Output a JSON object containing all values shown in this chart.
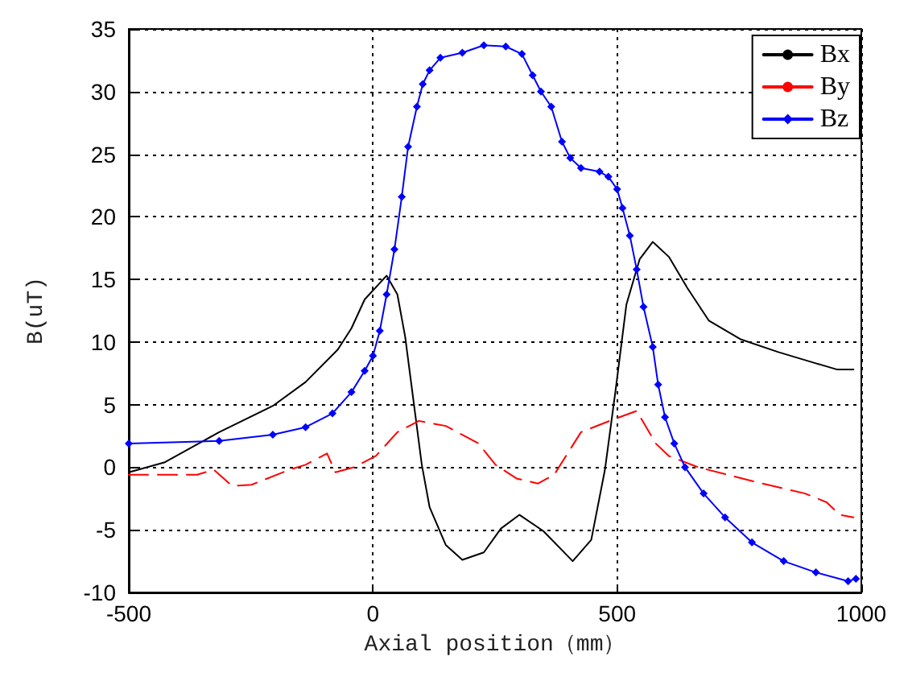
{
  "chart_data": {
    "type": "line",
    "xlabel": "Axial position（mm）",
    "ylabel": "B(uT)",
    "xlim": [
      -500,
      1000
    ],
    "xticks": [
      -500,
      0,
      500,
      1000
    ],
    "ylim": [
      -10,
      35
    ],
    "yticks": [
      -10,
      -5,
      0,
      5,
      10,
      15,
      20,
      25,
      30,
      35
    ],
    "grid": true,
    "legend": "top right",
    "series": [
      {
        "name": "Bx",
        "color": "#000000",
        "line_style": "solid",
        "marker": "none",
        "x": [
          -500,
          -426,
          -315,
          -205,
          -138,
          -72,
          -44,
          -17,
          28,
          50,
          66,
          83,
          100,
          116,
          149,
          183,
          227,
          262,
          300,
          349,
          409,
          447,
          475,
          497,
          519,
          546,
          573,
          606,
          644,
          688,
          754,
          830,
          907,
          951,
          984
        ],
        "values": [
          -0.4,
          0.4,
          2.8,
          4.9,
          6.8,
          9.4,
          11.1,
          13.4,
          15.3,
          13.8,
          10.4,
          5.3,
          0.2,
          -3.2,
          -6.2,
          -7.4,
          -6.8,
          -4.9,
          -3.8,
          -5.1,
          -7.5,
          -5.8,
          -0.2,
          6.2,
          13.0,
          16.6,
          18.0,
          16.8,
          14.3,
          11.7,
          10.2,
          9.2,
          8.3,
          7.8,
          7.8
        ]
      },
      {
        "name": "By",
        "color": "#ff0000",
        "line_style": "dashed",
        "marker": "none",
        "x": [
          -500,
          -360,
          -326,
          -288,
          -249,
          -171,
          -138,
          -94,
          -77,
          -39,
          6,
          50,
          94,
          149,
          216,
          251,
          294,
          338,
          371,
          426,
          491,
          540,
          579,
          606,
          666,
          776,
          885,
          929,
          956,
          984
        ],
        "values": [
          -0.6,
          -0.6,
          -0.2,
          -1.5,
          -1.4,
          -0.2,
          0.2,
          1.1,
          -0.4,
          0,
          0.9,
          2.8,
          3.7,
          3.3,
          1.9,
          0.2,
          -0.9,
          -1.3,
          -0.6,
          2.8,
          3.8,
          4.5,
          1.9,
          0.9,
          0,
          -1.1,
          -2.1,
          -2.8,
          -3.8,
          -4.0
        ]
      },
      {
        "name": "Bz",
        "color": "#0000ff",
        "line_style": "solid",
        "marker": "diamond",
        "x": [
          -500,
          -315,
          -205,
          -138,
          -83,
          -44,
          -17,
          0,
          14,
          28,
          44,
          59,
          72,
          90,
          102,
          116,
          138,
          183,
          227,
          272,
          305,
          327,
          344,
          365,
          387,
          404,
          426,
          464,
          482,
          500,
          511,
          526,
          540,
          554,
          573,
          584,
          598,
          617,
          639,
          677,
          721,
          776,
          841,
          907,
          973,
          989
        ],
        "values": [
          1.9,
          2.1,
          2.6,
          3.2,
          4.3,
          6.0,
          7.7,
          8.9,
          10.9,
          13.8,
          17.4,
          21.6,
          25.6,
          28.8,
          30.6,
          31.7,
          32.7,
          33.1,
          33.7,
          33.6,
          33.0,
          31.3,
          30.0,
          28.8,
          26.0,
          24.7,
          23.9,
          23.6,
          23.2,
          22.2,
          20.7,
          18.5,
          15.8,
          12.8,
          9.6,
          6.6,
          4.0,
          1.9,
          0,
          -2.1,
          -4.0,
          -6.0,
          -7.5,
          -8.4,
          -9.1,
          -8.9
        ]
      }
    ]
  }
}
